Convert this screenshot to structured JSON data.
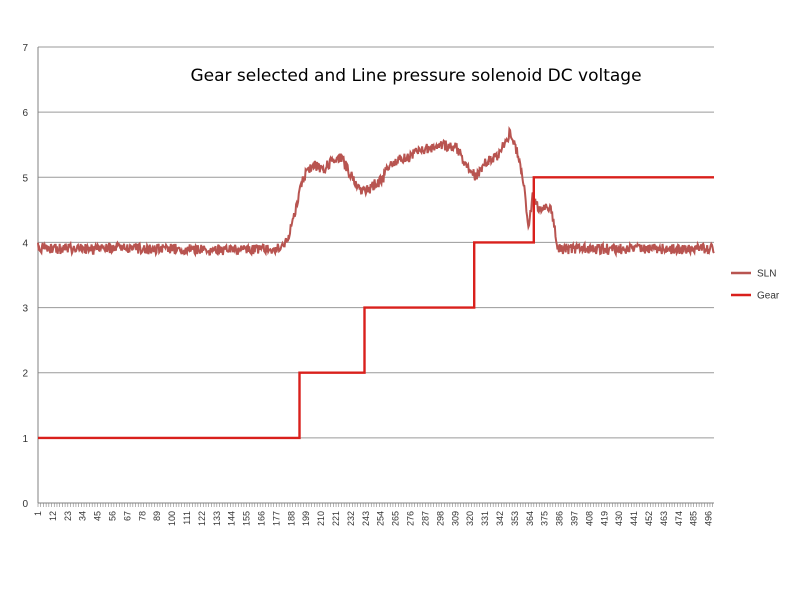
{
  "chart_data": {
    "type": "line",
    "title": "Gear selected and Line pressure solenoid DC voltage",
    "xlabel": "",
    "ylabel": "",
    "xlim": [
      1,
      500
    ],
    "ylim": [
      0,
      7
    ],
    "y_ticks": [
      "0",
      "1",
      "2",
      "3",
      "4",
      "5",
      "6",
      "7"
    ],
    "x_tick_labels": [
      "1",
      "12",
      "23",
      "34",
      "45",
      "56",
      "67",
      "78",
      "89",
      "100",
      "111",
      "122",
      "133",
      "144",
      "155",
      "166",
      "177",
      "188",
      "199",
      "210",
      "221",
      "232",
      "243",
      "254",
      "265",
      "276",
      "287",
      "298",
      "309",
      "320",
      "331",
      "342",
      "353",
      "364",
      "375",
      "386",
      "397",
      "408",
      "419",
      "430",
      "441",
      "452",
      "463",
      "474",
      "485",
      "496"
    ],
    "grid": true,
    "legend_position": "right",
    "series": [
      {
        "name": "SLN",
        "color": "#b85450",
        "x": [
          1,
          20,
          40,
          60,
          80,
          100,
          120,
          140,
          160,
          177,
          185,
          190,
          195,
          200,
          205,
          210,
          220,
          225,
          230,
          235,
          240,
          245,
          250,
          255,
          260,
          265,
          270,
          275,
          280,
          290,
          300,
          310,
          320,
          325,
          330,
          335,
          340,
          345,
          350,
          355,
          360,
          363,
          366,
          370,
          375,
          380,
          385,
          390,
          400,
          420,
          440,
          460,
          480,
          500
        ],
        "values": [
          3.92,
          3.9,
          3.9,
          3.92,
          3.9,
          3.9,
          3.9,
          3.88,
          3.9,
          3.9,
          4.0,
          4.4,
          4.9,
          5.1,
          5.2,
          5.1,
          5.3,
          5.3,
          5.1,
          4.95,
          4.8,
          4.8,
          4.9,
          4.95,
          5.2,
          5.25,
          5.3,
          5.3,
          5.4,
          5.45,
          5.5,
          5.45,
          5.1,
          5.0,
          5.2,
          5.3,
          5.3,
          5.5,
          5.7,
          5.35,
          4.9,
          4.2,
          4.7,
          4.55,
          4.55,
          4.5,
          3.9,
          3.9,
          3.9,
          3.9,
          3.9,
          3.9,
          3.9,
          3.9
        ]
      },
      {
        "name": "Gear",
        "color": "#d9201c",
        "x": [
          1,
          194,
          194,
          242,
          242,
          323,
          323,
          367,
          367,
          500
        ],
        "values": [
          1,
          1,
          2,
          2,
          3,
          3,
          4,
          4,
          5,
          5
        ]
      }
    ]
  }
}
